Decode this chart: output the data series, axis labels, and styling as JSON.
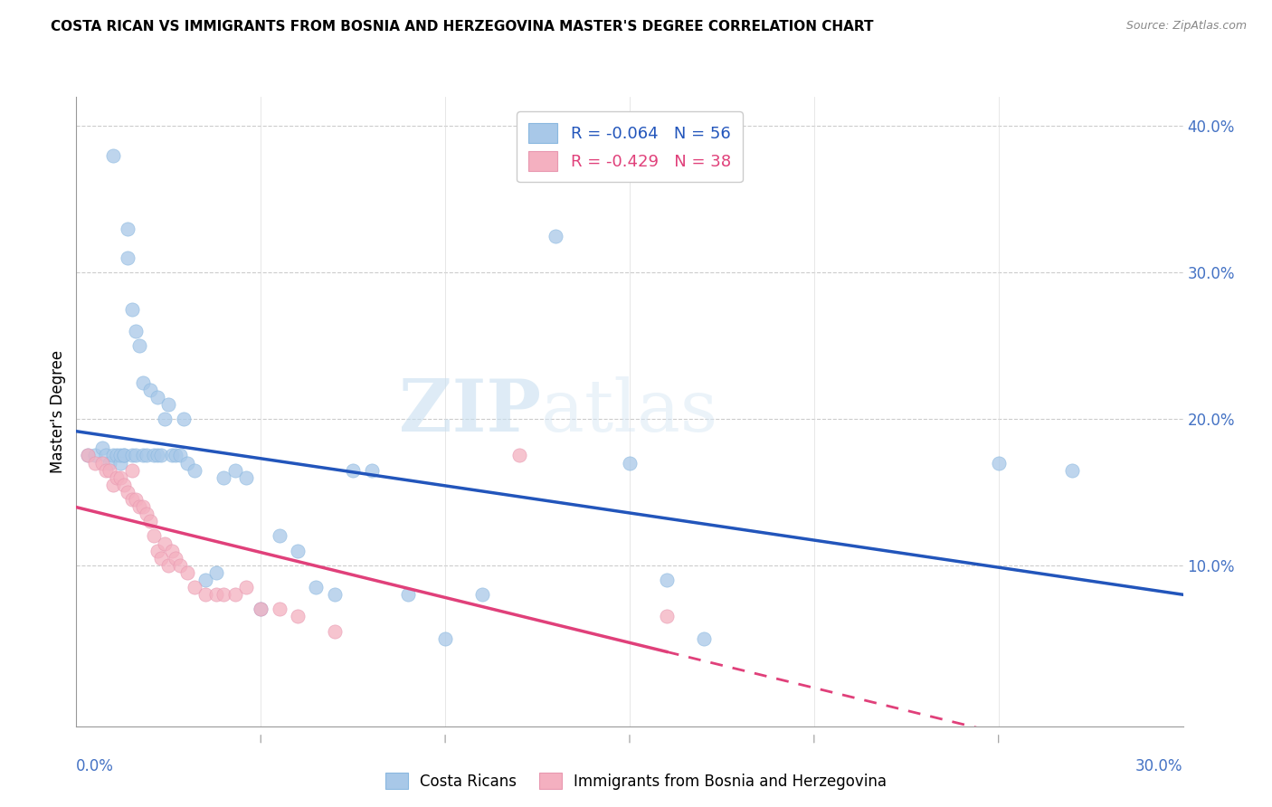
{
  "title": "COSTA RICAN VS IMMIGRANTS FROM BOSNIA AND HERZEGOVINA MASTER'S DEGREE CORRELATION CHART",
  "source": "Source: ZipAtlas.com",
  "ylabel": "Master's Degree",
  "xlim": [
    0.0,
    0.3
  ],
  "ylim": [
    -0.01,
    0.42
  ],
  "blue_color": "#a8c8e8",
  "pink_color": "#f4b0c0",
  "blue_line_color": "#2255bb",
  "pink_line_color": "#e0407a",
  "legend_R1": "R = -0.064",
  "legend_N1": "N = 56",
  "legend_R2": "R = -0.429",
  "legend_N2": "N = 38",
  "legend_label1": "Costa Ricans",
  "legend_label2": "Immigrants from Bosnia and Herzegovina",
  "watermark_zip": "ZIP",
  "watermark_atlas": "atlas",
  "blue_scatter_x": [
    0.003,
    0.005,
    0.007,
    0.008,
    0.009,
    0.01,
    0.01,
    0.011,
    0.012,
    0.012,
    0.013,
    0.013,
    0.014,
    0.014,
    0.015,
    0.015,
    0.016,
    0.016,
    0.017,
    0.018,
    0.018,
    0.019,
    0.02,
    0.021,
    0.022,
    0.022,
    0.023,
    0.024,
    0.025,
    0.026,
    0.027,
    0.028,
    0.029,
    0.03,
    0.032,
    0.035,
    0.038,
    0.04,
    0.043,
    0.046,
    0.05,
    0.055,
    0.06,
    0.065,
    0.07,
    0.075,
    0.08,
    0.09,
    0.1,
    0.11,
    0.13,
    0.15,
    0.16,
    0.17,
    0.25,
    0.27
  ],
  "blue_scatter_y": [
    0.175,
    0.175,
    0.18,
    0.175,
    0.17,
    0.38,
    0.175,
    0.175,
    0.17,
    0.175,
    0.175,
    0.175,
    0.33,
    0.31,
    0.275,
    0.175,
    0.26,
    0.175,
    0.25,
    0.225,
    0.175,
    0.175,
    0.22,
    0.175,
    0.215,
    0.175,
    0.175,
    0.2,
    0.21,
    0.175,
    0.175,
    0.175,
    0.2,
    0.17,
    0.165,
    0.09,
    0.095,
    0.16,
    0.165,
    0.16,
    0.07,
    0.12,
    0.11,
    0.085,
    0.08,
    0.165,
    0.165,
    0.08,
    0.05,
    0.08,
    0.325,
    0.17,
    0.09,
    0.05,
    0.17,
    0.165
  ],
  "pink_scatter_x": [
    0.003,
    0.005,
    0.007,
    0.008,
    0.009,
    0.01,
    0.011,
    0.012,
    0.013,
    0.014,
    0.015,
    0.015,
    0.016,
    0.017,
    0.018,
    0.019,
    0.02,
    0.021,
    0.022,
    0.023,
    0.024,
    0.025,
    0.026,
    0.027,
    0.028,
    0.03,
    0.032,
    0.035,
    0.038,
    0.04,
    0.043,
    0.046,
    0.05,
    0.055,
    0.06,
    0.07,
    0.12,
    0.16
  ],
  "pink_scatter_y": [
    0.175,
    0.17,
    0.17,
    0.165,
    0.165,
    0.155,
    0.16,
    0.16,
    0.155,
    0.15,
    0.165,
    0.145,
    0.145,
    0.14,
    0.14,
    0.135,
    0.13,
    0.12,
    0.11,
    0.105,
    0.115,
    0.1,
    0.11,
    0.105,
    0.1,
    0.095,
    0.085,
    0.08,
    0.08,
    0.08,
    0.08,
    0.085,
    0.07,
    0.07,
    0.065,
    0.055,
    0.175,
    0.065
  ]
}
